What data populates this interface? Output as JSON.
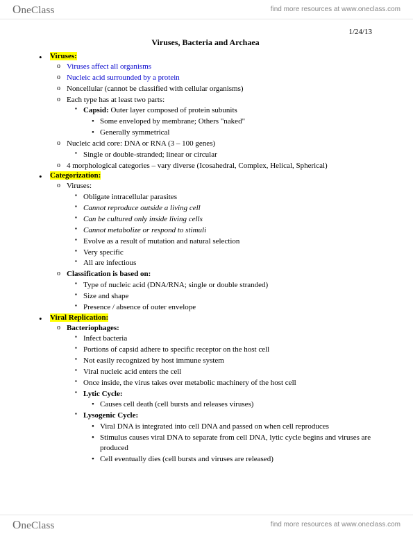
{
  "brand": {
    "logo": "OneClass",
    "tagline": "find more resources at www.oneclass.com"
  },
  "date": "1/24/13",
  "title": "Viruses, Bacteria and Archaea",
  "sections": [
    {
      "heading": "Viruses:",
      "heading_highlight": true,
      "items": [
        {
          "text": "Viruses affect all organisms",
          "blue": true
        },
        {
          "text": "Nucleic acid surrounded by a protein",
          "blue": true
        },
        {
          "text": "Noncellular (cannot be classified with cellular organisms)"
        },
        {
          "text": "Each type has at least two parts:",
          "sub": [
            {
              "prefix_bold": "Capsid:",
              "rest": " Outer layer composed of protein subunits",
              "sub": [
                {
                  "text": "Some enveloped by membrane; Others \"naked\""
                },
                {
                  "text": "Generally symmetrical"
                }
              ]
            }
          ]
        },
        {
          "text": "Nucleic acid core: DNA or RNA (3 – 100 genes)",
          "sub": [
            {
              "text": "Single or double-stranded; linear or circular"
            }
          ]
        },
        {
          "text": "4 morphological categories – vary diverse (Icosahedral, Complex, Helical, Spherical)"
        }
      ]
    },
    {
      "heading": "Categorization:",
      "heading_highlight": true,
      "items": [
        {
          "text": "Viruses:",
          "sub": [
            {
              "text": "Obligate intracellular parasites"
            },
            {
              "text": "Cannot reproduce outside a living cell",
              "italic": true
            },
            {
              "text": "Can be cultured only inside living cells",
              "italic": true
            },
            {
              "text": "Cannot metabolize or respond to stimuli",
              "italic": true
            },
            {
              "text": "Evolve as a result of mutation and natural selection"
            },
            {
              "text": "Very specific"
            },
            {
              "text": "All are infectious"
            }
          ]
        },
        {
          "text": "Classification is based on:",
          "bold": true,
          "sub": [
            {
              "text": "Type of nucleic acid (DNA/RNA; single or double stranded)"
            },
            {
              "text": "Size and shape"
            },
            {
              "text": "Presence / absence of outer envelope"
            }
          ]
        }
      ]
    },
    {
      "heading": "Viral Replication:",
      "heading_highlight": true,
      "items": [
        {
          "text": "Bacteriophages:",
          "bold": true,
          "sub": [
            {
              "text": "Infect bacteria"
            },
            {
              "text": "Portions of capsid adhere to specific receptor on the host cell"
            },
            {
              "text": "Not easily recognized by host immune system"
            },
            {
              "text": "Viral nucleic acid enters the cell"
            },
            {
              "text": "Once inside, the virus takes over metabolic machinery of the host cell"
            },
            {
              "text": "Lytic Cycle:",
              "bold": true,
              "sub": [
                {
                  "text": "Causes cell death (cell bursts and releases viruses)"
                }
              ]
            },
            {
              "text": "Lysogenic Cycle:",
              "bold": true,
              "sub": [
                {
                  "text": "Viral DNA is integrated into cell DNA and passed on when cell reproduces"
                },
                {
                  "text": "Stimulus causes viral DNA to separate from cell DNA, lytic cycle begins and viruses are produced"
                },
                {
                  "text": "Cell eventually dies (cell bursts and viruses are released)"
                }
              ]
            }
          ]
        }
      ]
    }
  ]
}
